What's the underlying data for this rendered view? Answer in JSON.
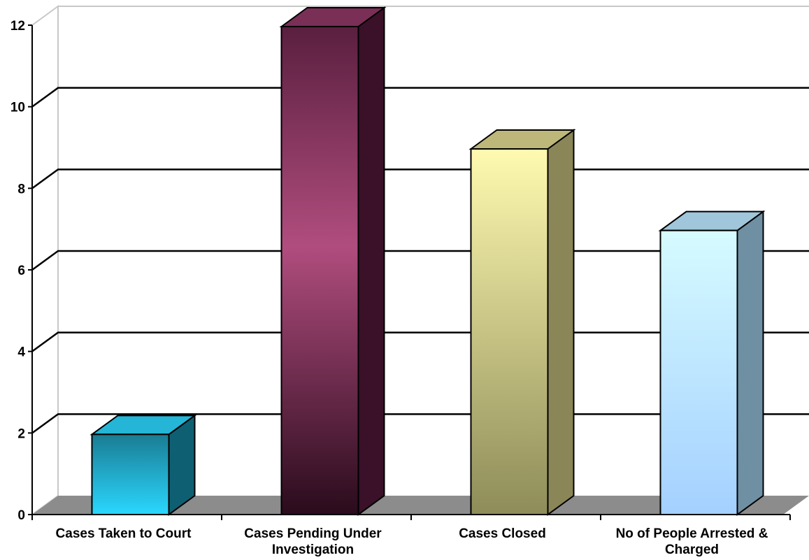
{
  "chart_data": {
    "type": "bar",
    "style": "3d-column",
    "title": "",
    "xlabel": "",
    "ylabel": "",
    "ylim": [
      0,
      12
    ],
    "yticks": [
      0,
      2,
      4,
      6,
      8,
      10,
      12
    ],
    "grid": true,
    "legend": "none",
    "categories": [
      [
        "Cases Taken to Court"
      ],
      [
        "Cases Pending Under",
        "Investigation"
      ],
      [
        "Cases Closed"
      ],
      [
        "No of People Arrested &",
        "Charged"
      ]
    ],
    "values": [
      2,
      12,
      9,
      7
    ],
    "colors": [
      {
        "front_top": "#1a7c93",
        "front_bottom": "#2ad7ff",
        "side": "#0f5f72",
        "top": "#25b5d6"
      },
      {
        "front_top": "#5a1f3f",
        "front_mid": "#b04d7e",
        "front_bottom": "#2a0b1c",
        "side": "#3a1128",
        "top": "#7a2f57"
      },
      {
        "front_top": "#fffab0",
        "front_bottom": "#8e8c59",
        "side": "#8a8657",
        "top": "#bdb77a"
      },
      {
        "front_top": "#d6fbff",
        "front_bottom": "#a4d0ff",
        "side": "#6f8fa3",
        "top": "#9fc6da"
      }
    ],
    "floor_color": "#8c8c8c",
    "wall_color": "#c8c8c8"
  }
}
